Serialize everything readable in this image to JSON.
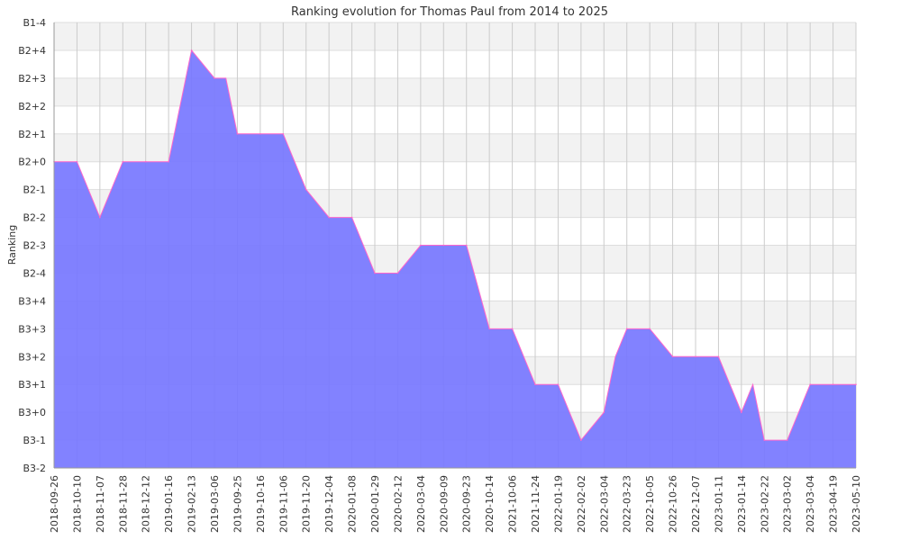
{
  "chart_data": {
    "type": "area",
    "title": "Ranking evolution for Thomas Paul from 2014 to 2025",
    "xlabel": "",
    "ylabel": "Ranking",
    "y_ticks": [
      "B1-4",
      "B2+4",
      "B2+3",
      "B2+2",
      "B2+1",
      "B2+0",
      "B2-1",
      "B2-2",
      "B2-3",
      "B2-4",
      "B3+4",
      "B3+3",
      "B3+2",
      "B3+1",
      "B3+0",
      "B3-1",
      "B3-2"
    ],
    "x_ticks": [
      "2018-09-26",
      "2018-10-10",
      "2018-11-07",
      "2018-11-28",
      "2018-12-12",
      "2019-01-16",
      "2019-02-13",
      "2019-03-06",
      "2019-09-25",
      "2019-10-16",
      "2019-11-06",
      "2019-11-20",
      "2019-12-04",
      "2020-01-08",
      "2020-01-29",
      "2020-02-12",
      "2020-03-04",
      "2020-09-09",
      "2020-09-23",
      "2020-10-14",
      "2021-10-06",
      "2021-11-24",
      "2022-01-19",
      "2022-02-02",
      "2022-03-04",
      "2022-03-23",
      "2022-10-05",
      "2022-10-26",
      "2022-12-07",
      "2023-01-11",
      "2023-01-14",
      "2023-02-22",
      "2023-03-02",
      "2023-03-04",
      "2023-04-19",
      "2023-05-10"
    ],
    "grid": true,
    "series": [
      {
        "color": "#7777ff",
        "line_color": "#ff66cc",
        "points": [
          {
            "x": "2018-09-26",
            "y": "B2+0"
          },
          {
            "x": "2018-10-10",
            "y": "B2+0"
          },
          {
            "x": "2018-11-07",
            "y": "B2-2"
          },
          {
            "x": "2018-11-28",
            "y": "B2+0"
          },
          {
            "x": "2018-12-12",
            "y": "B2+0"
          },
          {
            "x": "2019-01-16",
            "y": "B2+0"
          },
          {
            "x": "2019-02-13",
            "y": "B2+4"
          },
          {
            "x": "2019-03-06",
            "y": "B2+3"
          },
          {
            "x": "2019-09-25",
            "y": "B2+1"
          },
          {
            "x": "2019-10-16",
            "y": "B2+1"
          },
          {
            "x": "2019-11-06",
            "y": "B2+1"
          },
          {
            "x": "2019-11-20",
            "y": "B2-1"
          },
          {
            "x": "2019-12-04",
            "y": "B2-2"
          },
          {
            "x": "2020-01-08",
            "y": "B2-2"
          },
          {
            "x": "2020-01-29",
            "y": "B2-4"
          },
          {
            "x": "2020-02-12",
            "y": "B2-4"
          },
          {
            "x": "2020-03-04",
            "y": "B2-3"
          },
          {
            "x": "2020-09-09",
            "y": "B2-3"
          },
          {
            "x": "2020-09-23",
            "y": "B2-3"
          },
          {
            "x": "2020-10-14",
            "y": "B3+3"
          },
          {
            "x": "2021-10-06",
            "y": "B3+3"
          },
          {
            "x": "2021-11-24",
            "y": "B3+1"
          },
          {
            "x": "2022-01-19",
            "y": "B3+1"
          },
          {
            "x": "2022-02-02",
            "y": "B3-1"
          },
          {
            "x": "2022-03-04",
            "y": "B3+0"
          },
          {
            "x": "2022-03-23",
            "y": "B3+3"
          },
          {
            "x": "2022-10-05",
            "y": "B3+3"
          },
          {
            "x": "2022-10-26",
            "y": "B3+2"
          },
          {
            "x": "2022-12-07",
            "y": "B3+2"
          },
          {
            "x": "2023-01-11",
            "y": "B3+2"
          },
          {
            "x": "2023-01-14",
            "y": "B3+0"
          },
          {
            "x": "2023-02-22",
            "y": "B3-1"
          },
          {
            "x": "2023-03-02",
            "y": "B3-1"
          },
          {
            "x": "2023-03-04",
            "y": "B3+1"
          },
          {
            "x": "2023-04-19",
            "y": "B3+1"
          },
          {
            "x": "2023-05-10",
            "y": "B3+1"
          }
        ],
        "extra_peaks": [
          {
            "between": [
              "2019-01-16",
              "2019-02-13"
            ],
            "y": "B2+2"
          },
          {
            "between": [
              "2019-03-06",
              "2019-09-25"
            ],
            "y": "B2+3"
          },
          {
            "between": [
              "2022-03-04",
              "2022-03-23"
            ],
            "y": "B3+2"
          },
          {
            "between": [
              "2023-01-14",
              "2023-02-22"
            ],
            "y": "B3+1"
          }
        ]
      }
    ]
  }
}
